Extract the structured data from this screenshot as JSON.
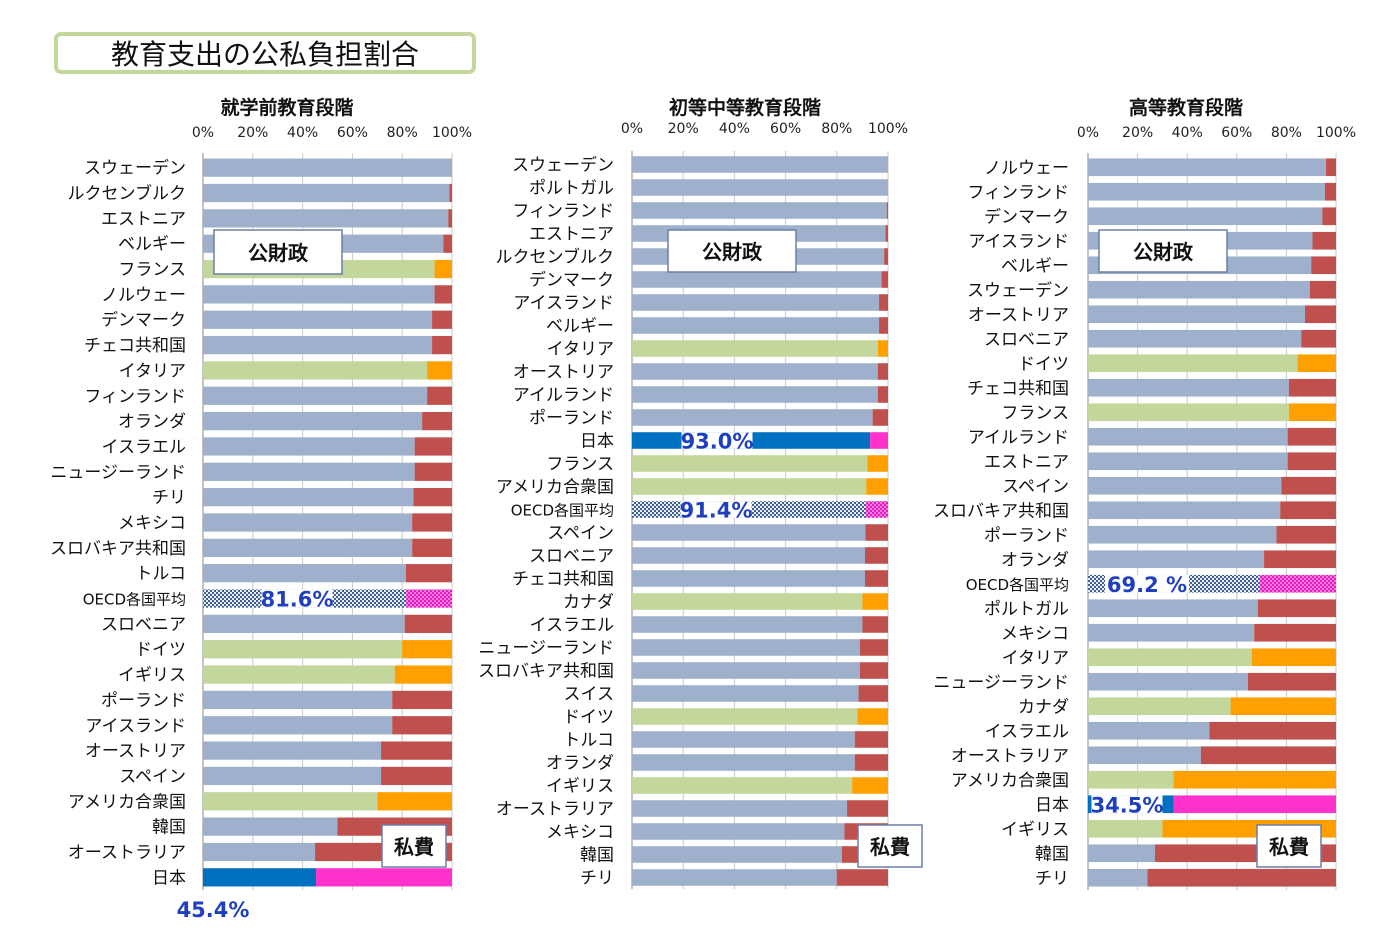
{
  "page_title": "教育支出の公私負担割合",
  "legend_public": "公財政",
  "legend_private": "私費",
  "colors": {
    "public": "#9eb0cc",
    "private": "#c0504d",
    "public_private_institutional_public": "#c3d69b",
    "public_private_institutional_private": "#ffa000",
    "japan_public": "#0070c0",
    "japan_private": "#ff33cc",
    "oecd_private": "#ff55dd",
    "highlight_label": "#1f3fbf"
  },
  "chart_data": [
    {
      "type": "bar",
      "orientation": "horizontal-stacked",
      "title": "就学前教育段階",
      "xlim": [
        0,
        100
      ],
      "xticks": [
        "0%",
        "20%",
        "40%",
        "60%",
        "80%",
        "100%"
      ],
      "categories": [
        "スウェーデン",
        "ルクセンブルク",
        "エストニア",
        "ベルギー",
        "フランス",
        "ノルウェー",
        "デンマーク",
        "チェコ共和国",
        "イタリア",
        "フィンランド",
        "オランダ",
        "イスラエル",
        "ニュージーランド",
        "チリ",
        "メキシコ",
        "スロバキア共和国",
        "トルコ",
        "OECD各国平均",
        "スロベニア",
        "ドイツ",
        "イギリス",
        "ポーランド",
        "アイスランド",
        "オーストリア",
        "スペイン",
        "アメリカ合衆国",
        "韓国",
        "オーストラリア",
        "日本"
      ],
      "series": [
        {
          "name": "公財政",
          "values": [
            100,
            99,
            98.5,
            96.5,
            93,
            93,
            92,
            92,
            90,
            90,
            88,
            85,
            85,
            84.5,
            84,
            84,
            81.5,
            81.6,
            81,
            80,
            77,
            76,
            76,
            71.5,
            71.5,
            70,
            54,
            45,
            45.4
          ]
        },
        {
          "name": "私費",
          "values": [
            0,
            1,
            1.5,
            3.5,
            7,
            7,
            8,
            8,
            10,
            10,
            12,
            15,
            15,
            15.5,
            16,
            16,
            18.5,
            18.4,
            19,
            20,
            23,
            24,
            24,
            28.5,
            28.5,
            30,
            46,
            55,
            54.6
          ]
        }
      ],
      "highlight_labels": [
        {
          "category": "OECD各国平均",
          "text": "81.6%"
        },
        {
          "category": "日本",
          "text": "45.4%"
        }
      ]
    },
    {
      "type": "bar",
      "orientation": "horizontal-stacked",
      "title": "初等中等教育段階",
      "xlim": [
        0,
        100
      ],
      "xticks": [
        "0%",
        "20%",
        "40%",
        "60%",
        "80%",
        "100%"
      ],
      "categories": [
        "スウェーデン",
        "ポルトガル",
        "フィンランド",
        "エストニア",
        "ルクセンブルク",
        "デンマーク",
        "アイスランド",
        "ベルギー",
        "イタリア",
        "オーストリア",
        "アイルランド",
        "ポーランド",
        "日本",
        "フランス",
        "アメリカ合衆国",
        "OECD各国平均",
        "スペイン",
        "スロベニア",
        "チェコ共和国",
        "カナダ",
        "イスラエル",
        "ニュージーランド",
        "スロバキア共和国",
        "スイス",
        "ドイツ",
        "トルコ",
        "オランダ",
        "イギリス",
        "オーストラリア",
        "メキシコ",
        "韓国",
        "チリ"
      ],
      "series": [
        {
          "name": "公財政",
          "values": [
            100,
            100,
            99.5,
            99,
            98.5,
            97.5,
            96.5,
            96.5,
            96,
            96,
            96,
            94,
            93,
            92,
            91.5,
            91.4,
            91.2,
            91,
            91,
            90,
            90,
            89,
            89,
            88.5,
            88,
            87,
            87,
            86,
            84,
            83,
            82,
            80
          ]
        },
        {
          "name": "私費",
          "values": [
            0,
            0,
            0.5,
            1,
            1.5,
            2.5,
            3.5,
            3.5,
            4,
            4,
            4,
            6,
            7,
            8,
            8.5,
            8.6,
            8.8,
            9,
            9,
            10,
            10,
            11,
            11,
            11.5,
            12,
            13,
            13,
            14,
            16,
            17,
            18,
            20
          ]
        }
      ],
      "highlight_labels": [
        {
          "category": "日本",
          "text": "93.0%"
        },
        {
          "category": "OECD各国平均",
          "text": "91.4%"
        }
      ]
    },
    {
      "type": "bar",
      "orientation": "horizontal-stacked",
      "title": "高等教育段階",
      "xlim": [
        0,
        100
      ],
      "xticks": [
        "0%",
        "20%",
        "40%",
        "60%",
        "80%",
        "100%"
      ],
      "categories": [
        "ノルウェー",
        "フィンランド",
        "デンマーク",
        "アイスランド",
        "ベルギー",
        "スウェーデン",
        "オーストリア",
        "スロベニア",
        "ドイツ",
        "チェコ共和国",
        "フランス",
        "アイルランド",
        "エストニア",
        "スペイン",
        "スロバキア共和国",
        "ポーランド",
        "オランダ",
        "OECD各国平均",
        "ポルトガル",
        "メキシコ",
        "イタリア",
        "ニュージーランド",
        "カナダ",
        "イスラエル",
        "オーストラリア",
        "アメリカ合衆国",
        "日本",
        "イギリス",
        "韓国",
        "チリ"
      ],
      "series": [
        {
          "name": "公財政",
          "values": [
            96,
            95.5,
            94.5,
            90.5,
            90,
            89.5,
            87.5,
            86,
            84.5,
            81,
            81,
            80.5,
            80.5,
            78,
            77.5,
            76,
            71,
            69.2,
            68.5,
            67,
            66,
            64.5,
            57.5,
            49,
            45.5,
            34.5,
            34.5,
            30,
            27,
            24
          ]
        },
        {
          "name": "私費",
          "values": [
            4,
            4.5,
            5.5,
            9.5,
            10,
            10.5,
            12.5,
            14,
            15.5,
            19,
            19,
            19.5,
            19.5,
            22,
            22.5,
            24,
            29,
            30.8,
            31.5,
            33,
            34,
            35.5,
            42.5,
            51,
            54.5,
            65.5,
            65.5,
            70,
            73,
            76
          ]
        }
      ],
      "highlight_labels": [
        {
          "category": "OECD各国平均",
          "text": "69.2 %"
        },
        {
          "category": "日本",
          "text": "34.5%"
        }
      ]
    }
  ]
}
